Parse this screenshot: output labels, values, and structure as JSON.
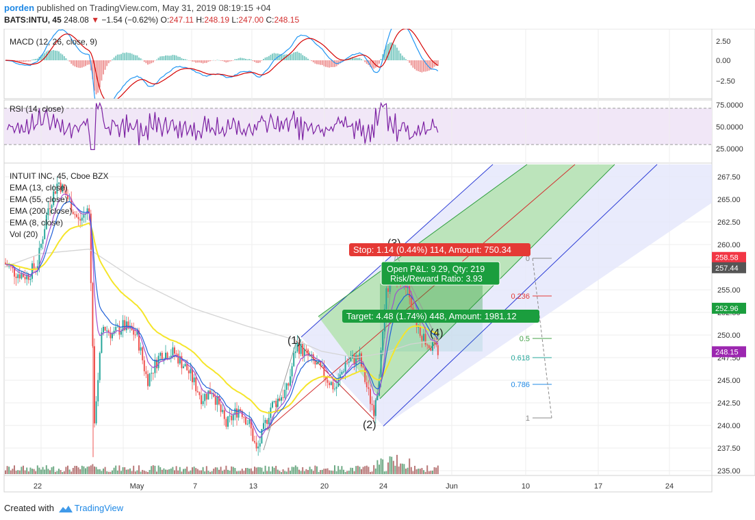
{
  "header": {
    "username": "porden",
    "published_text": " published on TradingView.com, May 31, 2019 08:19:15 +04",
    "symbol": "BATS:INTU, 45",
    "price": "248.08",
    "change_arrow": "▼",
    "change": "−1.54 (−0.62%)",
    "o_label": "O:",
    "o_value": "247.11",
    "h_label": "H:",
    "h_value": "248.19",
    "l_label": "L:",
    "l_value": "247.00",
    "c_label": "C:",
    "c_value": "248.15"
  },
  "macd": {
    "label": "MACD (12, 26, close, 9)",
    "ticks": [
      "2.50",
      "0.00",
      "−2.50"
    ]
  },
  "rsi": {
    "label": "RSI (14, close)",
    "ticks": [
      "75.0000",
      "50.0000",
      "25.0000"
    ]
  },
  "main": {
    "title": "INTUIT INC, 45, Cboe BZX",
    "indicators": [
      "EMA (13, close)",
      "EMA (55, close)",
      "EMA (200, close)",
      "EMA (8, close)",
      "Vol (20)"
    ],
    "price_ticks": [
      "267.50",
      "265.00",
      "262.50",
      "260.00",
      "257.50",
      "255.00",
      "252.50",
      "250.00",
      "247.50",
      "245.00",
      "242.50",
      "240.00",
      "237.50",
      "235.00"
    ],
    "price_labels": [
      {
        "text": "258.58",
        "color": "#f23645"
      },
      {
        "text": "257.44",
        "color": "#555555"
      },
      {
        "text": "252.96",
        "color": "#1b9e3e"
      },
      {
        "text": "248.15",
        "color": "#9c27b0"
      }
    ],
    "wave_labels": [
      "(1)",
      "(2)",
      "(3)",
      "(4)"
    ],
    "fib_levels": [
      {
        "label": "0",
        "color": "#888888"
      },
      {
        "label": "0.236",
        "color": "#e53935"
      },
      {
        "label": "0.5",
        "color": "#43a047"
      },
      {
        "label": "0.618",
        "color": "#26a69a"
      },
      {
        "label": "0.786",
        "color": "#1e88e5"
      },
      {
        "label": "1",
        "color": "#888888"
      }
    ],
    "stop_box": "Stop: 1.14 (0.44%) 114, Amount: 750.34",
    "pnl_line1": "Open P&L: 9.29, Qty: 219",
    "pnl_line2": "Risk/Reward Ratio: 3.93",
    "target_box": "Target: 4.48 (1.74%) 448, Amount: 1981.12"
  },
  "xaxis": {
    "ticks": [
      "22",
      "May",
      "7",
      "13",
      "20",
      "24",
      "Jun",
      "10",
      "17",
      "24"
    ]
  },
  "footer": {
    "created_with": "Created with",
    "brand": "TradingView"
  },
  "colors": {
    "up": "#26a69a",
    "down": "#ef5350",
    "ema13": "#1e5fd8",
    "ema55": "#f5e52a",
    "ema200": "#cfcfcf",
    "ema8": "#a24fd0"
  }
}
